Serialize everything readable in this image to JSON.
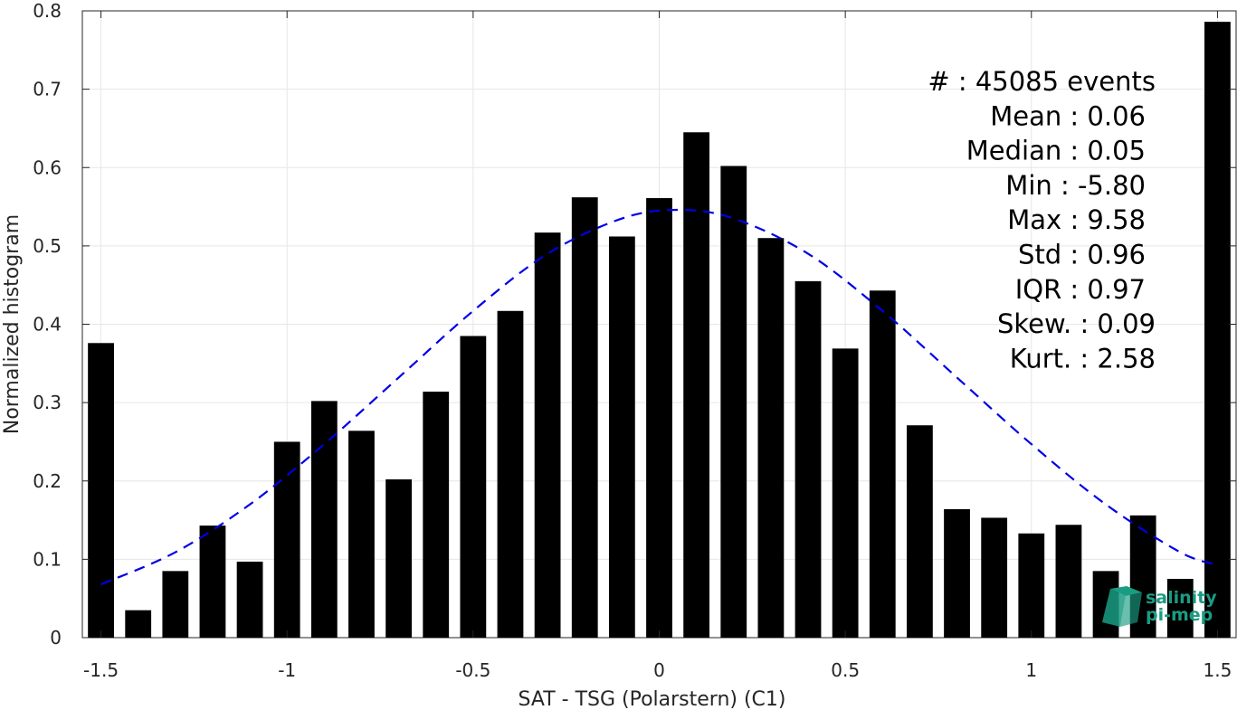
{
  "chart_data": {
    "type": "bar",
    "xlabel": "SAT - TSG (Polarstern) (C1)",
    "ylabel": "Normalized histogram",
    "xlim": [
      -1.55,
      1.55
    ],
    "ylim": [
      0,
      0.8
    ],
    "x_ticks": [
      -1.5,
      -1,
      -0.5,
      0,
      0.5,
      1,
      1.5
    ],
    "x_tick_labels": [
      "-1.5",
      "-1",
      "-0.5",
      "0",
      "0.5",
      "1",
      "1.5"
    ],
    "y_ticks": [
      0,
      0.1,
      0.2,
      0.3,
      0.4,
      0.5,
      0.6,
      0.7,
      0.8
    ],
    "y_tick_labels": [
      "0",
      "0.1",
      "0.2",
      "0.3",
      "0.4",
      "0.5",
      "0.6",
      "0.7",
      "0.8"
    ],
    "grid": true,
    "bar_width": 0.07,
    "bars": {
      "color": "#000000",
      "x": [
        -1.5,
        -1.4,
        -1.3,
        -1.2,
        -1.1,
        -1.0,
        -0.9,
        -0.8,
        -0.7,
        -0.6,
        -0.5,
        -0.4,
        -0.3,
        -0.2,
        -0.1,
        0.0,
        0.1,
        0.2,
        0.3,
        0.4,
        0.5,
        0.6,
        0.7,
        0.8,
        0.9,
        1.0,
        1.1,
        1.2,
        1.3,
        1.4,
        1.5
      ],
      "values": [
        0.376,
        0.035,
        0.085,
        0.143,
        0.097,
        0.25,
        0.302,
        0.264,
        0.202,
        0.314,
        0.385,
        0.417,
        0.517,
        0.562,
        0.512,
        0.561,
        0.645,
        0.602,
        0.51,
        0.455,
        0.369,
        0.443,
        0.271,
        0.164,
        0.153,
        0.133,
        0.144,
        0.085,
        0.156,
        0.075,
        0.786
      ]
    },
    "fit_curve": {
      "style": "dashed",
      "color": "#0000e6",
      "x": [
        -1.5,
        -1.3,
        -1.1,
        -0.9,
        -0.7,
        -0.5,
        -0.3,
        -0.1,
        0.05,
        0.2,
        0.4,
        0.6,
        0.8,
        1.0,
        1.2,
        1.4,
        1.5
      ],
      "values": [
        0.068,
        0.109,
        0.17,
        0.247,
        0.332,
        0.417,
        0.49,
        0.535,
        0.546,
        0.535,
        0.49,
        0.417,
        0.332,
        0.247,
        0.17,
        0.109,
        0.093
      ]
    },
    "stats": [
      "#  : 45085 events",
      "Mean : 0.06",
      "Median : 0.05",
      "Min : -5.80",
      "Max : 9.58",
      "Std : 0.96",
      "IQR : 0.97",
      "Skew. : 0.09",
      "Kurt. : 2.58"
    ]
  },
  "logo": {
    "line1": "salinity",
    "line2": "pi-mep",
    "color": "#1a9c82"
  }
}
